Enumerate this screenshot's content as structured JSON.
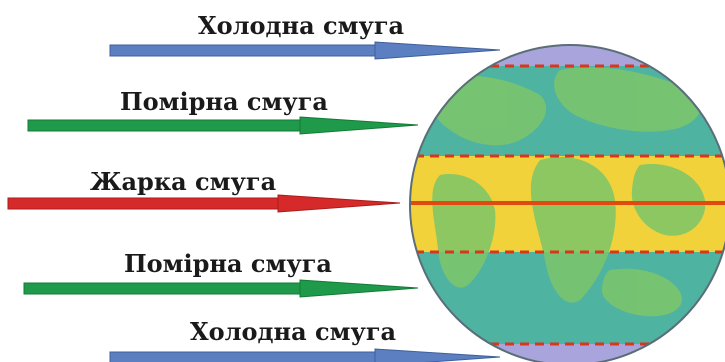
{
  "zones": [
    {
      "key": "cold-north",
      "label": "Холодна смуга",
      "color": "#5b7fc0"
    },
    {
      "key": "temperate-north",
      "label": "Помірна смуга",
      "color": "#1f9a4a"
    },
    {
      "key": "hot",
      "label": "Жарка смуга",
      "color": "#d62a2a"
    },
    {
      "key": "temperate-south",
      "label": "Помірна смуга",
      "color": "#1f9a4a"
    },
    {
      "key": "cold-south",
      "label": "Холодна смуга",
      "color": "#5b7fc0"
    }
  ],
  "colors": {
    "ocean": "#4fb3a2",
    "land": "#7cc66a",
    "hot_band": "#f2d23a",
    "cold_cap": "#a9a4dc",
    "tropic_line": "#d9361e",
    "equator_line": "#e04a12"
  }
}
